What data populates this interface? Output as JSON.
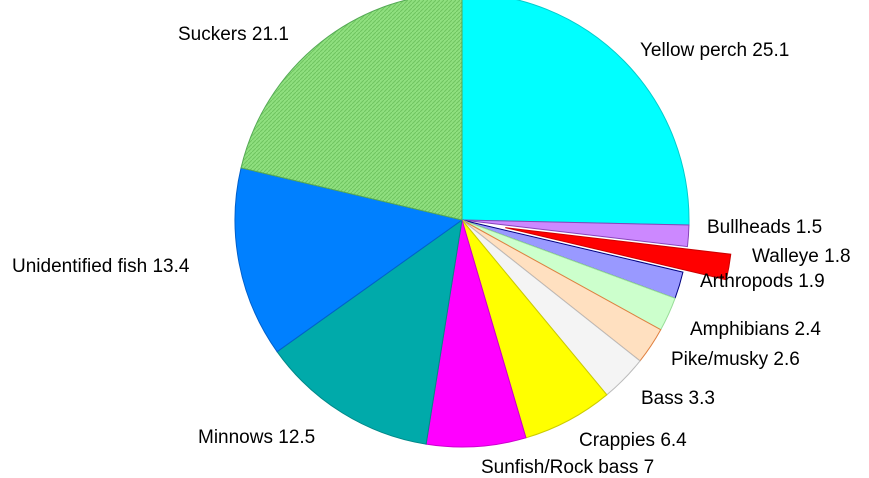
{
  "chart_data": {
    "type": "pie",
    "unit": "",
    "slices": [
      {
        "label": "Yellow perch 25.1",
        "name": "Yellow perch",
        "value": 25.1,
        "color": "#00FFFF",
        "stroke": "#00CCCC"
      },
      {
        "label": "Bullheads 1.5",
        "name": "Bullheads",
        "value": 1.5,
        "color": "#CC88FF",
        "stroke": "#8844BB"
      },
      {
        "label": "Walleye 1.8",
        "name": "Walleye",
        "value": 1.8,
        "color": "#FF0000",
        "stroke": "#CC0000",
        "exploded": true
      },
      {
        "label": "Arthropods 1.9",
        "name": "Arthropods",
        "value": 1.9,
        "color": "#9999FF",
        "stroke": "#000080"
      },
      {
        "label": "Amphibians 2.4",
        "name": "Amphibians",
        "value": 2.4,
        "color": "#CCFFCC",
        "stroke": "#99DD99"
      },
      {
        "label": "Pike/musky 2.6",
        "name": "Pike/musky",
        "value": 2.6,
        "color": "#FFE0C0",
        "stroke": "#E08040"
      },
      {
        "label": "Bass 3.3",
        "name": "Bass",
        "value": 3.3,
        "color": "#F4F4F4",
        "stroke": "#BBBBBB"
      },
      {
        "label": "Crappies 6.4",
        "name": "Crappies",
        "value": 6.4,
        "color": "#FFFF00",
        "stroke": "#CCCC00"
      },
      {
        "label": "Sunfish/Rock bass 7",
        "name": "Sunfish/Rock bass",
        "value": 7,
        "color": "#FF00FF",
        "stroke": "#CC00CC"
      },
      {
        "label": "Minnows 12.5",
        "name": "Minnows",
        "value": 12.5,
        "color": "#00AAAA",
        "stroke": "#008888"
      },
      {
        "label": "Unidentified fish 13.4",
        "name": "Unidentified fish",
        "value": 13.4,
        "color": "#0080FF",
        "stroke": "#0060CC"
      },
      {
        "label": "Suckers 21.1",
        "name": "Suckers",
        "value": 21.1,
        "color": "#88DD77",
        "stroke": "#55AA55",
        "pattern": "hatched"
      }
    ],
    "start": "12 o'clock",
    "direction": "clockwise",
    "legend": "none"
  }
}
